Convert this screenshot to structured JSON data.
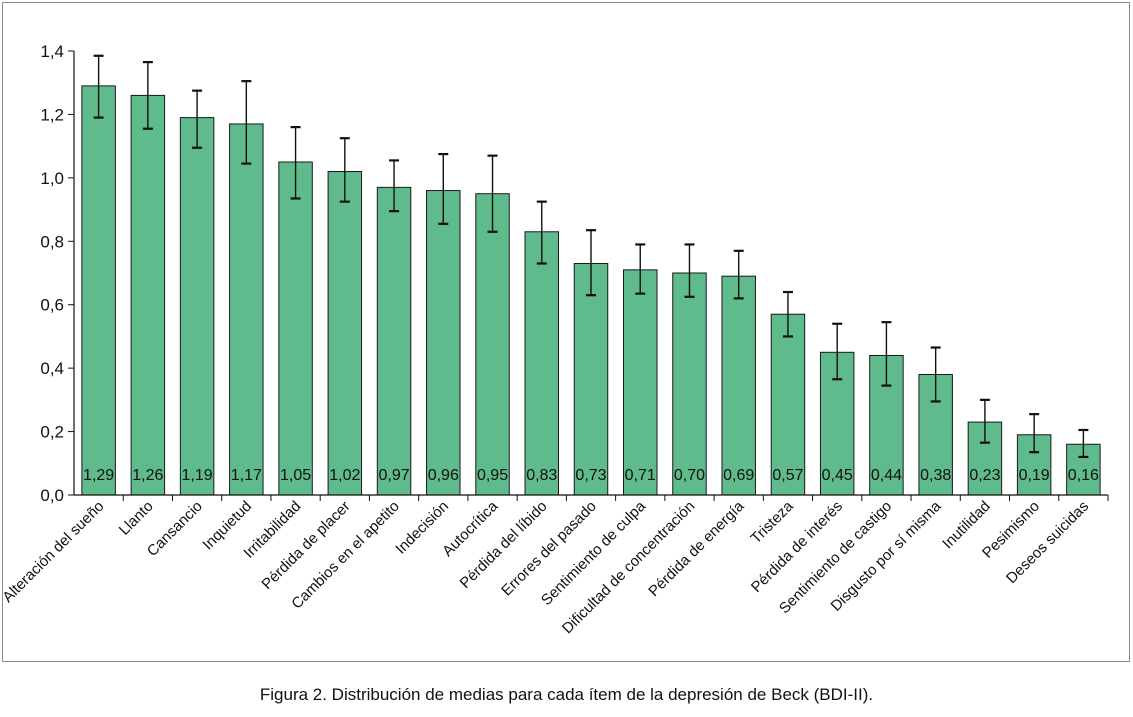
{
  "caption": "Figura 2. Distribución de medias para cada ítem de la depresión de Beck (BDI-II).",
  "chart_data": {
    "type": "bar",
    "categories": [
      "Alteración del sueño",
      "Llanto",
      "Cansancio",
      "Inquietud",
      "Irritabilidad",
      "Pérdida de placer",
      "Cambios en el apetito",
      "Indecisión",
      "Autocrítica",
      "Pérdida del líbido",
      "Errores del pasado",
      "Sentimiento de culpa",
      "Dificultad de concentración",
      "Pérdida de energía",
      "Tristeza",
      "Pérdida de interés",
      "Sentimiento de castigo",
      "Disgusto por sí misma",
      "Inutilidad",
      "Pesimismo",
      "Deseos suicidas"
    ],
    "values": [
      1.29,
      1.26,
      1.19,
      1.17,
      1.05,
      1.02,
      0.97,
      0.96,
      0.95,
      0.83,
      0.73,
      0.71,
      0.7,
      0.69,
      0.57,
      0.45,
      0.44,
      0.38,
      0.23,
      0.19,
      0.16
    ],
    "value_labels": [
      "1,29",
      "1,26",
      "1,19",
      "1,17",
      "1,05",
      "1,02",
      "0,97",
      "0,96",
      "0,95",
      "0,83",
      "0,73",
      "0,71",
      "0,70",
      "0,69",
      "0,57",
      "0,45",
      "0,44",
      "0,38",
      "0,23",
      "0,19",
      "0,16"
    ],
    "error_upper": [
      1.385,
      1.365,
      1.275,
      1.305,
      1.16,
      1.125,
      1.055,
      1.075,
      1.07,
      0.925,
      0.835,
      0.79,
      0.79,
      0.77,
      0.64,
      0.54,
      0.545,
      0.465,
      0.3,
      0.255,
      0.205
    ],
    "error_lower": [
      1.19,
      1.155,
      1.095,
      1.045,
      0.935,
      0.925,
      0.895,
      0.855,
      0.83,
      0.73,
      0.63,
      0.635,
      0.625,
      0.62,
      0.5,
      0.365,
      0.345,
      0.295,
      0.165,
      0.135,
      0.12
    ],
    "ylim": [
      0,
      1.4
    ],
    "yticks": [
      0,
      0.2,
      0.4,
      0.6,
      0.8,
      1.0,
      1.2,
      1.4
    ],
    "ytick_labels": [
      "0,0",
      "0,2",
      "0,4",
      "0,6",
      "0,8",
      "1,0",
      "1,2",
      "1,4"
    ],
    "title": "",
    "xlabel": "",
    "ylabel": "",
    "grid": false,
    "legend": "none",
    "bar_color": "#5fba8c",
    "bar_edge_color": "#1a1a1a"
  }
}
